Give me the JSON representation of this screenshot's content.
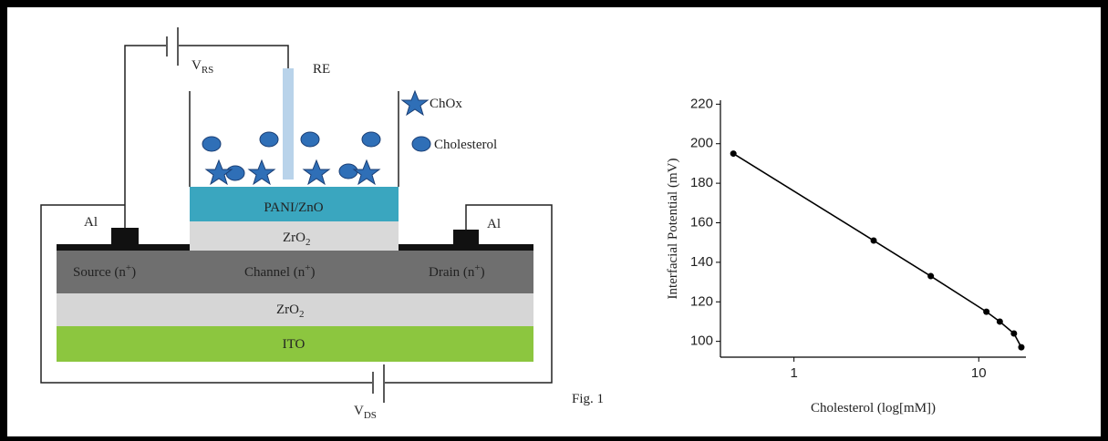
{
  "diagram": {
    "vrs": {
      "text": "V",
      "sub": "RS"
    },
    "re": "RE",
    "legend": {
      "chox": "ChOx",
      "cholesterol": "Cholesterol"
    },
    "pani": "PANI/ZnO",
    "zro2_top": {
      "text": "ZrO",
      "sub": "2"
    },
    "al_left": "Al",
    "al_right": "Al",
    "source": {
      "text": "Source (n",
      "sup": "+",
      "tail": ")"
    },
    "channel": {
      "text": "Channel (n",
      "sup": "+",
      "tail": ")"
    },
    "drain": {
      "text": "Drain (n",
      "sup": "+",
      "tail": ")"
    },
    "zro2_bottom": {
      "text": "ZrO",
      "sub": "2"
    },
    "ito": "ITO",
    "vds": {
      "text": "V",
      "sub": "DS"
    },
    "caption": "Fig. 1"
  },
  "chart_data": {
    "type": "scatter-line",
    "x_label": "Cholesterol (log[mM])",
    "y_label": "Interfacial Potential (mV)",
    "x": [
      0.47,
      2.7,
      5.5,
      11,
      13,
      15.5,
      17
    ],
    "values": [
      195,
      151,
      133,
      115,
      110,
      104,
      97
    ],
    "color": "#000000",
    "xscale": "log",
    "xlim": [
      0.4,
      18
    ],
    "xticks": [
      1,
      10
    ],
    "ylim": [
      92,
      222
    ],
    "yticks": [
      100,
      120,
      140,
      160,
      180,
      200,
      220
    ]
  }
}
